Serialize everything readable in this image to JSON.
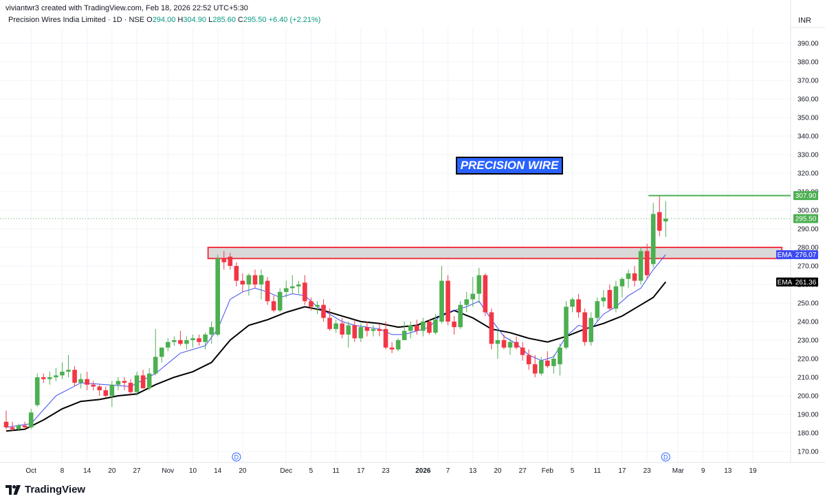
{
  "header": {
    "created_line": "viviantwr3 created with TradingView.com, Feb 18, 2026 22:52 UTC+5:30",
    "symbol_line": "Precision Wires India Limited · 1D · NSE",
    "ohlc": {
      "o_label": "O",
      "o": "294.00",
      "h_label": "H",
      "h": "304.90",
      "l_label": "L",
      "l": "285.60",
      "c_label": "C",
      "c": "295.50",
      "change": "+6.40 (+2.21%)"
    },
    "currency": "INR"
  },
  "annotation_title": "PRECISION WIRE",
  "footer": {
    "brand": "TradingView"
  },
  "colors": {
    "up": "#4caf50",
    "down": "#f23645",
    "ema_fast": "#3d4bf2",
    "ema_slow": "#000000",
    "resistance_line": "#4caf50",
    "zone_border": "#f23645",
    "zone_fill": "#d9d9d9"
  },
  "chart_data": {
    "type": "candlestick",
    "y_axis": {
      "range": [
        163,
        401
      ],
      "ticks": [
        "170.00",
        "180.00",
        "190.00",
        "200.00",
        "210.00",
        "220.00",
        "230.00",
        "240.00",
        "250.00",
        "260.00",
        "270.00",
        "280.00",
        "290.00",
        "300.00",
        "310.00",
        "320.00",
        "330.00",
        "340.00",
        "350.00",
        "360.00",
        "370.00",
        "380.00",
        "390.00"
      ]
    },
    "x_axis": {
      "labels": [
        {
          "text": "Oct",
          "bar": 4,
          "bold": false
        },
        {
          "text": "8",
          "bar": 9,
          "bold": false
        },
        {
          "text": "14",
          "bar": 13,
          "bold": false
        },
        {
          "text": "20",
          "bar": 17,
          "bold": false
        },
        {
          "text": "27",
          "bar": 21,
          "bold": false
        },
        {
          "text": "Nov",
          "bar": 26,
          "bold": false
        },
        {
          "text": "10",
          "bar": 30,
          "bold": false
        },
        {
          "text": "14",
          "bar": 34,
          "bold": false
        },
        {
          "text": "20",
          "bar": 38,
          "bold": false
        },
        {
          "text": "Dec",
          "bar": 45,
          "bold": false
        },
        {
          "text": "5",
          "bar": 49,
          "bold": false
        },
        {
          "text": "11",
          "bar": 53,
          "bold": false
        },
        {
          "text": "17",
          "bar": 57,
          "bold": false
        },
        {
          "text": "23",
          "bar": 61,
          "bold": false
        },
        {
          "text": "2026",
          "bar": 67,
          "bold": true
        },
        {
          "text": "7",
          "bar": 71,
          "bold": false
        },
        {
          "text": "13",
          "bar": 75,
          "bold": false
        },
        {
          "text": "20",
          "bar": 79,
          "bold": false
        },
        {
          "text": "27",
          "bar": 83,
          "bold": false
        },
        {
          "text": "Feb",
          "bar": 87,
          "bold": false
        },
        {
          "text": "5",
          "bar": 91,
          "bold": false
        },
        {
          "text": "11",
          "bar": 95,
          "bold": false
        },
        {
          "text": "17",
          "bar": 99,
          "bold": false
        },
        {
          "text": "23",
          "bar": 103,
          "bold": false
        },
        {
          "text": "Mar",
          "bar": 108,
          "bold": false
        },
        {
          "text": "9",
          "bar": 112,
          "bold": false
        },
        {
          "text": "13",
          "bar": 116,
          "bold": false
        },
        {
          "text": "19",
          "bar": 120,
          "bold": false
        }
      ]
    },
    "candles": [
      {
        "o": 186,
        "h": 192,
        "l": 182,
        "c": 183
      },
      {
        "o": 183,
        "h": 186,
        "l": 181,
        "c": 182
      },
      {
        "o": 182,
        "h": 185,
        "l": 181,
        "c": 184
      },
      {
        "o": 184,
        "h": 186,
        "l": 182,
        "c": 183
      },
      {
        "o": 183,
        "h": 193,
        "l": 182,
        "c": 191
      },
      {
        "o": 195,
        "h": 212,
        "l": 194,
        "c": 210
      },
      {
        "o": 210,
        "h": 212,
        "l": 207,
        "c": 209
      },
      {
        "o": 209,
        "h": 213,
        "l": 206,
        "c": 210
      },
      {
        "o": 210,
        "h": 215,
        "l": 208,
        "c": 211
      },
      {
        "o": 211,
        "h": 218,
        "l": 209,
        "c": 213
      },
      {
        "o": 213,
        "h": 222,
        "l": 210,
        "c": 214
      },
      {
        "o": 214,
        "h": 216,
        "l": 205,
        "c": 207
      },
      {
        "o": 207,
        "h": 212,
        "l": 204,
        "c": 209
      },
      {
        "o": 209,
        "h": 213,
        "l": 203,
        "c": 206
      },
      {
        "o": 206,
        "h": 208,
        "l": 203,
        "c": 205
      },
      {
        "o": 205,
        "h": 206,
        "l": 200,
        "c": 203
      },
      {
        "o": 203,
        "h": 205,
        "l": 199,
        "c": 200
      },
      {
        "o": 200,
        "h": 208,
        "l": 194,
        "c": 206
      },
      {
        "o": 206,
        "h": 210,
        "l": 203,
        "c": 208
      },
      {
        "o": 208,
        "h": 210,
        "l": 203,
        "c": 207
      },
      {
        "o": 207,
        "h": 209,
        "l": 200,
        "c": 202
      },
      {
        "o": 202,
        "h": 213,
        "l": 200,
        "c": 211
      },
      {
        "o": 211,
        "h": 214,
        "l": 204,
        "c": 204
      },
      {
        "o": 204,
        "h": 215,
        "l": 203,
        "c": 212
      },
      {
        "o": 212,
        "h": 236,
        "l": 211,
        "c": 221
      },
      {
        "o": 221,
        "h": 226,
        "l": 218,
        "c": 226
      },
      {
        "o": 226,
        "h": 231,
        "l": 224,
        "c": 229
      },
      {
        "o": 229,
        "h": 232,
        "l": 227,
        "c": 230
      },
      {
        "o": 230,
        "h": 235,
        "l": 227,
        "c": 228
      },
      {
        "o": 228,
        "h": 232,
        "l": 225,
        "c": 230
      },
      {
        "o": 230,
        "h": 233,
        "l": 226,
        "c": 231
      },
      {
        "o": 231,
        "h": 233,
        "l": 227,
        "c": 229
      },
      {
        "o": 229,
        "h": 234,
        "l": 225,
        "c": 233
      },
      {
        "o": 233,
        "h": 240,
        "l": 228,
        "c": 237
      },
      {
        "o": 233,
        "h": 276,
        "l": 232,
        "c": 274
      },
      {
        "o": 274,
        "h": 278,
        "l": 268,
        "c": 272
      },
      {
        "o": 275,
        "h": 277,
        "l": 268,
        "c": 270
      },
      {
        "o": 270,
        "h": 272,
        "l": 259,
        "c": 262
      },
      {
        "o": 262,
        "h": 266,
        "l": 256,
        "c": 260
      },
      {
        "o": 260,
        "h": 266,
        "l": 254,
        "c": 265
      },
      {
        "o": 265,
        "h": 268,
        "l": 258,
        "c": 260
      },
      {
        "o": 260,
        "h": 268,
        "l": 252,
        "c": 265
      },
      {
        "o": 262,
        "h": 264,
        "l": 249,
        "c": 251
      },
      {
        "o": 251,
        "h": 254,
        "l": 245,
        "c": 246
      },
      {
        "o": 246,
        "h": 258,
        "l": 245,
        "c": 256
      },
      {
        "o": 256,
        "h": 262,
        "l": 253,
        "c": 258
      },
      {
        "o": 258,
        "h": 265,
        "l": 255,
        "c": 259
      },
      {
        "o": 259,
        "h": 262,
        "l": 255,
        "c": 260
      },
      {
        "o": 261,
        "h": 265,
        "l": 249,
        "c": 251
      },
      {
        "o": 251,
        "h": 253,
        "l": 246,
        "c": 248
      },
      {
        "o": 248,
        "h": 251,
        "l": 244,
        "c": 249
      },
      {
        "o": 249,
        "h": 252,
        "l": 240,
        "c": 242
      },
      {
        "o": 242,
        "h": 247,
        "l": 235,
        "c": 236
      },
      {
        "o": 236,
        "h": 241,
        "l": 234,
        "c": 239
      },
      {
        "o": 239,
        "h": 242,
        "l": 231,
        "c": 233
      },
      {
        "o": 233,
        "h": 240,
        "l": 226,
        "c": 238
      },
      {
        "o": 238,
        "h": 241,
        "l": 229,
        "c": 231
      },
      {
        "o": 231,
        "h": 239,
        "l": 229,
        "c": 237
      },
      {
        "o": 237,
        "h": 240,
        "l": 232,
        "c": 235
      },
      {
        "o": 235,
        "h": 238,
        "l": 232,
        "c": 236
      },
      {
        "o": 236,
        "h": 239,
        "l": 232,
        "c": 235
      },
      {
        "o": 236,
        "h": 240,
        "l": 225,
        "c": 226
      },
      {
        "o": 226,
        "h": 229,
        "l": 223,
        "c": 225
      },
      {
        "o": 225,
        "h": 231,
        "l": 224,
        "c": 230
      },
      {
        "o": 230,
        "h": 240,
        "l": 230,
        "c": 235
      },
      {
        "o": 235,
        "h": 240,
        "l": 231,
        "c": 238
      },
      {
        "o": 238,
        "h": 241,
        "l": 233,
        "c": 235
      },
      {
        "o": 235,
        "h": 242,
        "l": 232,
        "c": 240
      },
      {
        "o": 240,
        "h": 241,
        "l": 233,
        "c": 234
      },
      {
        "o": 234,
        "h": 244,
        "l": 233,
        "c": 241
      },
      {
        "o": 240,
        "h": 270,
        "l": 239,
        "c": 262
      },
      {
        "o": 262,
        "h": 265,
        "l": 238,
        "c": 240
      },
      {
        "o": 240,
        "h": 243,
        "l": 233,
        "c": 237
      },
      {
        "o": 237,
        "h": 251,
        "l": 236,
        "c": 249
      },
      {
        "o": 249,
        "h": 256,
        "l": 245,
        "c": 252
      },
      {
        "o": 252,
        "h": 264,
        "l": 248,
        "c": 255
      },
      {
        "o": 255,
        "h": 269,
        "l": 250,
        "c": 265
      },
      {
        "o": 265,
        "h": 266,
        "l": 243,
        "c": 245
      },
      {
        "o": 245,
        "h": 247,
        "l": 225,
        "c": 228
      },
      {
        "o": 228,
        "h": 236,
        "l": 220,
        "c": 230
      },
      {
        "o": 230,
        "h": 233,
        "l": 225,
        "c": 226
      },
      {
        "o": 226,
        "h": 231,
        "l": 222,
        "c": 229
      },
      {
        "o": 229,
        "h": 232,
        "l": 225,
        "c": 226
      },
      {
        "o": 226,
        "h": 229,
        "l": 219,
        "c": 222
      },
      {
        "o": 222,
        "h": 225,
        "l": 214,
        "c": 217
      },
      {
        "o": 217,
        "h": 222,
        "l": 210,
        "c": 212
      },
      {
        "o": 212,
        "h": 221,
        "l": 211,
        "c": 219
      },
      {
        "o": 219,
        "h": 224,
        "l": 215,
        "c": 216
      },
      {
        "o": 216,
        "h": 222,
        "l": 212,
        "c": 220
      },
      {
        "o": 217,
        "h": 228,
        "l": 211,
        "c": 226
      },
      {
        "o": 226,
        "h": 251,
        "l": 225,
        "c": 248
      },
      {
        "o": 248,
        "h": 253,
        "l": 245,
        "c": 252
      },
      {
        "o": 252,
        "h": 255,
        "l": 242,
        "c": 245
      },
      {
        "o": 245,
        "h": 247,
        "l": 227,
        "c": 229
      },
      {
        "o": 229,
        "h": 245,
        "l": 227,
        "c": 242
      },
      {
        "o": 242,
        "h": 253,
        "l": 240,
        "c": 251
      },
      {
        "o": 251,
        "h": 257,
        "l": 248,
        "c": 253
      },
      {
        "o": 257,
        "h": 260,
        "l": 246,
        "c": 247
      },
      {
        "o": 247,
        "h": 262,
        "l": 245,
        "c": 259
      },
      {
        "o": 259,
        "h": 264,
        "l": 253,
        "c": 263
      },
      {
        "o": 263,
        "h": 268,
        "l": 258,
        "c": 266
      },
      {
        "o": 266,
        "h": 270,
        "l": 259,
        "c": 262
      },
      {
        "o": 262,
        "h": 280,
        "l": 260,
        "c": 278
      },
      {
        "o": 278,
        "h": 282,
        "l": 263,
        "c": 265
      },
      {
        "o": 271,
        "h": 304,
        "l": 269,
        "c": 298
      },
      {
        "o": 299,
        "h": 308,
        "l": 286,
        "c": 289
      },
      {
        "o": 294,
        "h": 304.9,
        "l": 285.6,
        "c": 295.5
      }
    ],
    "ema_fast": {
      "name": "EMA",
      "value": "276.07",
      "values": [
        {
          "i": 0,
          "v": 183
        },
        {
          "i": 4,
          "v": 185
        },
        {
          "i": 8,
          "v": 200
        },
        {
          "i": 12,
          "v": 207
        },
        {
          "i": 16,
          "v": 206
        },
        {
          "i": 20,
          "v": 205
        },
        {
          "i": 24,
          "v": 212
        },
        {
          "i": 28,
          "v": 223
        },
        {
          "i": 32,
          "v": 227
        },
        {
          "i": 34,
          "v": 236
        },
        {
          "i": 36,
          "v": 252
        },
        {
          "i": 38,
          "v": 256
        },
        {
          "i": 40,
          "v": 258
        },
        {
          "i": 42,
          "v": 256
        },
        {
          "i": 44,
          "v": 253
        },
        {
          "i": 46,
          "v": 255
        },
        {
          "i": 48,
          "v": 254
        },
        {
          "i": 50,
          "v": 248
        },
        {
          "i": 52,
          "v": 244
        },
        {
          "i": 54,
          "v": 240
        },
        {
          "i": 56,
          "v": 238
        },
        {
          "i": 58,
          "v": 237
        },
        {
          "i": 60,
          "v": 236
        },
        {
          "i": 62,
          "v": 233
        },
        {
          "i": 64,
          "v": 233
        },
        {
          "i": 66,
          "v": 235
        },
        {
          "i": 68,
          "v": 237
        },
        {
          "i": 70,
          "v": 244
        },
        {
          "i": 72,
          "v": 246
        },
        {
          "i": 74,
          "v": 248
        },
        {
          "i": 76,
          "v": 251
        },
        {
          "i": 78,
          "v": 241
        },
        {
          "i": 80,
          "v": 232
        },
        {
          "i": 82,
          "v": 228
        },
        {
          "i": 84,
          "v": 222
        },
        {
          "i": 86,
          "v": 219
        },
        {
          "i": 88,
          "v": 221
        },
        {
          "i": 90,
          "v": 232
        },
        {
          "i": 92,
          "v": 238
        },
        {
          "i": 94,
          "v": 236
        },
        {
          "i": 96,
          "v": 244
        },
        {
          "i": 98,
          "v": 248
        },
        {
          "i": 100,
          "v": 254
        },
        {
          "i": 102,
          "v": 258
        },
        {
          "i": 104,
          "v": 268
        },
        {
          "i": 106,
          "v": 276.07
        }
      ]
    },
    "ema_slow": {
      "name": "EMA",
      "value": "261.36",
      "values": [
        {
          "i": 0,
          "v": 181
        },
        {
          "i": 3,
          "v": 182
        },
        {
          "i": 6,
          "v": 187
        },
        {
          "i": 9,
          "v": 193
        },
        {
          "i": 12,
          "v": 197
        },
        {
          "i": 15,
          "v": 198
        },
        {
          "i": 18,
          "v": 200
        },
        {
          "i": 21,
          "v": 201
        },
        {
          "i": 24,
          "v": 206
        },
        {
          "i": 27,
          "v": 210
        },
        {
          "i": 30,
          "v": 213
        },
        {
          "i": 33,
          "v": 218
        },
        {
          "i": 36,
          "v": 230
        },
        {
          "i": 39,
          "v": 238
        },
        {
          "i": 42,
          "v": 241
        },
        {
          "i": 45,
          "v": 245
        },
        {
          "i": 48,
          "v": 248
        },
        {
          "i": 51,
          "v": 246
        },
        {
          "i": 54,
          "v": 243
        },
        {
          "i": 57,
          "v": 240
        },
        {
          "i": 60,
          "v": 239
        },
        {
          "i": 63,
          "v": 237
        },
        {
          "i": 66,
          "v": 238
        },
        {
          "i": 69,
          "v": 242
        },
        {
          "i": 72,
          "v": 246
        },
        {
          "i": 75,
          "v": 242
        },
        {
          "i": 78,
          "v": 236
        },
        {
          "i": 81,
          "v": 234
        },
        {
          "i": 84,
          "v": 231
        },
        {
          "i": 87,
          "v": 229
        },
        {
          "i": 90,
          "v": 232
        },
        {
          "i": 93,
          "v": 236
        },
        {
          "i": 96,
          "v": 239
        },
        {
          "i": 99,
          "v": 243
        },
        {
          "i": 102,
          "v": 249
        },
        {
          "i": 104,
          "v": 253
        },
        {
          "i": 106,
          "v": 261.36
        }
      ]
    },
    "last_price": "295.50",
    "resistance": {
      "value": "307.90",
      "from_bar": 104
    },
    "zone": {
      "top": 280,
      "bottom": 274,
      "from_bar": 33,
      "to_bar": 125
    },
    "dividend_markers": [
      {
        "bar": 37,
        "label": "D"
      },
      {
        "bar": 106,
        "label": "D"
      }
    ]
  }
}
